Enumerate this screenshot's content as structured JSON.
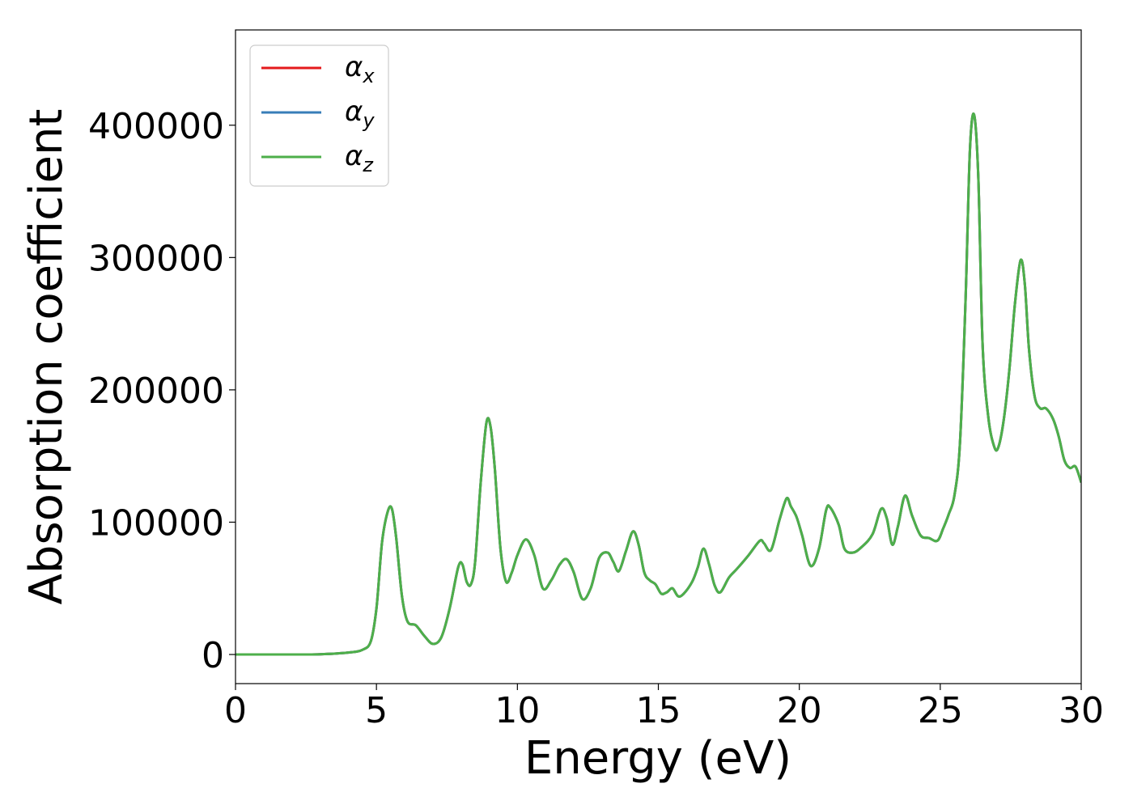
{
  "chart_data": {
    "type": "line",
    "title": "",
    "xlabel": "Energy (eV)",
    "ylabel": "Absorption coefficient",
    "xlim": [
      0,
      30
    ],
    "ylim": [
      -22000,
      472000
    ],
    "xticks": [
      0,
      5,
      10,
      15,
      20,
      25,
      30
    ],
    "yticks": [
      0,
      100000,
      200000,
      300000,
      400000
    ],
    "grid": false,
    "legend_position": "top-left",
    "series": [
      {
        "name": "αx",
        "color": "#e41a1c"
      },
      {
        "name": "αy",
        "color": "#377eb8"
      },
      {
        "name": "αz",
        "color": "#4daf4a"
      }
    ],
    "x": [
      0,
      1,
      2,
      3,
      4,
      4.5,
      4.8,
      5.0,
      5.2,
      5.4,
      5.55,
      5.7,
      5.9,
      6.1,
      6.4,
      6.7,
      7.0,
      7.3,
      7.6,
      7.9,
      8.05,
      8.2,
      8.35,
      8.5,
      8.7,
      8.9,
      9.05,
      9.2,
      9.4,
      9.6,
      9.8,
      10.0,
      10.3,
      10.6,
      10.9,
      11.2,
      11.5,
      11.75,
      12.0,
      12.3,
      12.6,
      12.9,
      13.2,
      13.4,
      13.6,
      13.85,
      14.1,
      14.3,
      14.5,
      14.7,
      14.9,
      15.1,
      15.3,
      15.5,
      15.7,
      15.9,
      16.2,
      16.4,
      16.6,
      16.8,
      17.0,
      17.2,
      17.5,
      17.8,
      18.2,
      18.6,
      18.75,
      19.0,
      19.3,
      19.55,
      19.7,
      19.9,
      20.1,
      20.4,
      20.7,
      20.95,
      21.1,
      21.4,
      21.6,
      21.9,
      22.2,
      22.6,
      22.9,
      23.1,
      23.3,
      23.5,
      23.75,
      24.0,
      24.3,
      24.6,
      24.9,
      25.1,
      25.3,
      25.5,
      25.7,
      25.9,
      26.05,
      26.2,
      26.35,
      26.5,
      26.7,
      26.9,
      27.05,
      27.25,
      27.45,
      27.65,
      27.85,
      28.0,
      28.15,
      28.35,
      28.55,
      28.75,
      29.0,
      29.2,
      29.4,
      29.6,
      29.8,
      30.0
    ],
    "y": [
      0,
      0,
      0,
      200,
      1500,
      3500,
      10000,
      35000,
      85000,
      108000,
      110000,
      88000,
      45000,
      25000,
      22000,
      14000,
      8000,
      13000,
      35000,
      66000,
      68000,
      55000,
      53000,
      70000,
      130000,
      175000,
      172000,
      140000,
      80000,
      55000,
      62000,
      75000,
      87000,
      75000,
      50000,
      56000,
      68000,
      72000,
      62000,
      42000,
      50000,
      73000,
      77000,
      70000,
      63000,
      78000,
      93000,
      83000,
      62000,
      56000,
      53000,
      46000,
      47000,
      50000,
      44000,
      46000,
      55000,
      66000,
      80000,
      68000,
      52000,
      47000,
      58000,
      65000,
      75000,
      86000,
      84000,
      79000,
      102000,
      118000,
      112000,
      104000,
      90000,
      67000,
      80000,
      109000,
      111000,
      98000,
      80000,
      77000,
      81000,
      91000,
      110000,
      103000,
      83000,
      97000,
      120000,
      105000,
      90000,
      88000,
      86000,
      95000,
      106000,
      120000,
      160000,
      270000,
      380000,
      408000,
      360000,
      235000,
      180000,
      158000,
      156000,
      177000,
      215000,
      265000,
      298000,
      280000,
      230000,
      195000,
      186000,
      186000,
      178000,
      165000,
      147000,
      141000,
      142000,
      130000
    ]
  }
}
